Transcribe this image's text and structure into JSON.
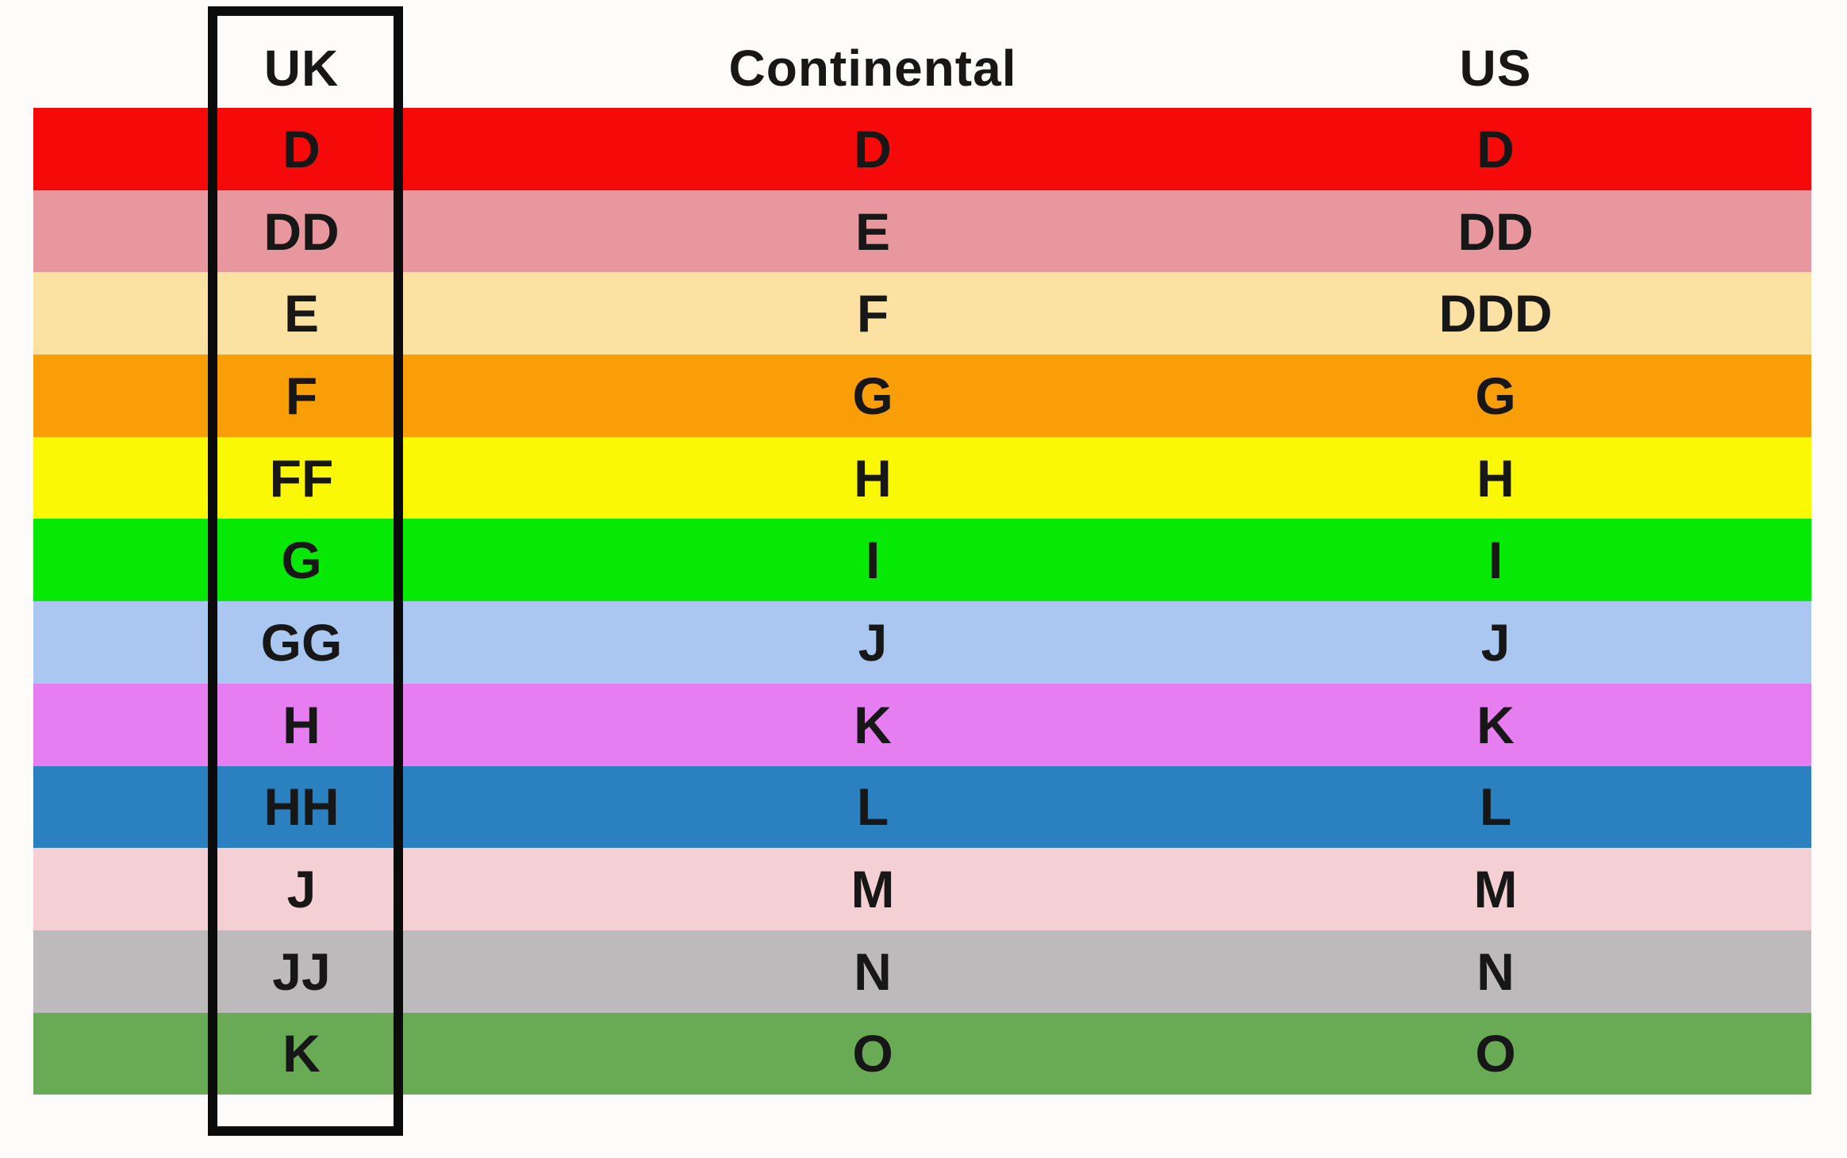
{
  "chart_data": {
    "type": "table",
    "title": "",
    "columns": [
      "UK",
      "Continental",
      "US"
    ],
    "rows": [
      {
        "cells": [
          "D",
          "D",
          "D"
        ],
        "color": "#f60909"
      },
      {
        "cells": [
          "DD",
          "E",
          "DD"
        ],
        "color": "#e8979f"
      },
      {
        "cells": [
          "E",
          "F",
          "DDD"
        ],
        "color": "#fbe2a2"
      },
      {
        "cells": [
          "F",
          "G",
          "G"
        ],
        "color": "#f99e06"
      },
      {
        "cells": [
          "FF",
          "H",
          "H"
        ],
        "color": "#fbf805"
      },
      {
        "cells": [
          "G",
          "I",
          "I"
        ],
        "color": "#05e905"
      },
      {
        "cells": [
          "GG",
          "J",
          "J"
        ],
        "color": "#a9c7f0"
      },
      {
        "cells": [
          "H",
          "K",
          "K"
        ],
        "color": "#e67ef2"
      },
      {
        "cells": [
          "HH",
          "L",
          "L"
        ],
        "color": "#2b81bf"
      },
      {
        "cells": [
          "J",
          "M",
          "M"
        ],
        "color": "#f4d0d4"
      },
      {
        "cells": [
          "JJ",
          "N",
          "N"
        ],
        "color": "#bcbaba"
      },
      {
        "cells": [
          "K",
          "O",
          "O"
        ],
        "color": "#69aa54"
      }
    ],
    "grid": false,
    "legend_position": "none",
    "highlight": {
      "column": "UK",
      "style": "black outline box",
      "color": "#0b0b0b"
    }
  },
  "colors": {
    "background": "#fdfcfb",
    "text": "#171717",
    "outline": "#0b0b0b"
  }
}
